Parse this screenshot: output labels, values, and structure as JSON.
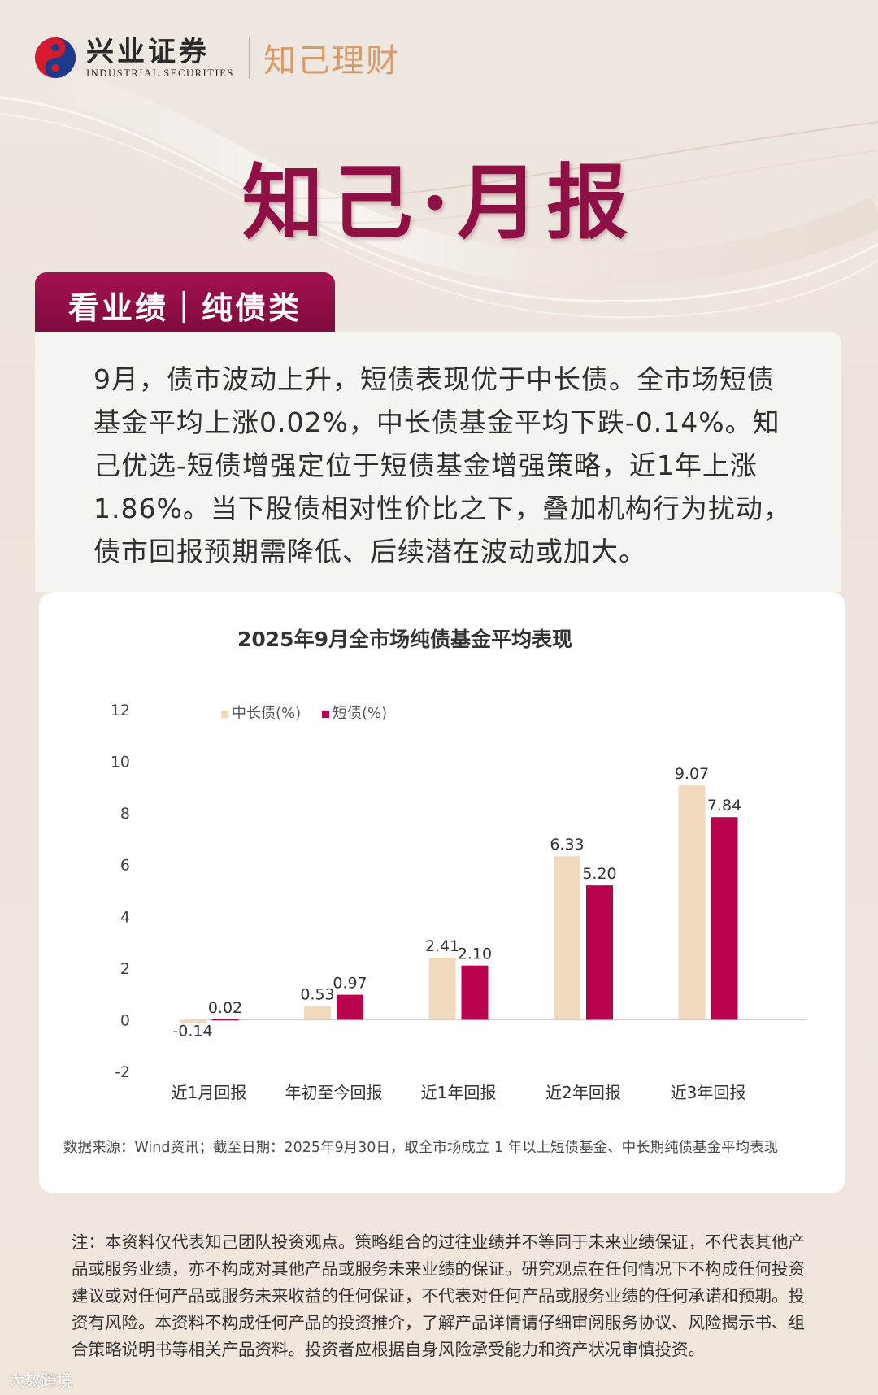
{
  "brand": {
    "name_cn": "兴业证券",
    "name_en": "INDUSTRIAL SECURITIES",
    "product": "知己理财"
  },
  "hero": {
    "title": "知己·月报"
  },
  "section": {
    "tab_label": "看业绩｜纯债类"
  },
  "summary": {
    "text": "9月，债市波动上升，短债表现优于中长债。全市场短债基金平均上涨0.02%，中长债基金平均下跌-0.14%。知己优选-短债增强定位于短债基金增强策略，近1年上涨1.86%。当下股债相对性价比之下，叠加机构行为扰动，债市回报预期需降低、后续潜在波动或加大。"
  },
  "chart_data": {
    "type": "bar",
    "title": "2025年9月全市场纯债基金平均表现",
    "categories": [
      "近1月回报",
      "年初至今回报",
      "近1年回报",
      "近2年回报",
      "近3年回报"
    ],
    "series": [
      {
        "name": "中长债(%)",
        "values": [
          -0.14,
          0.53,
          2.41,
          6.33,
          9.07
        ],
        "labels": [
          "-0.14",
          "0.53",
          "2.41",
          "6.33",
          "9.07"
        ],
        "color": "#f1d9bd"
      },
      {
        "name": "短债(%)",
        "values": [
          0.02,
          0.97,
          2.1,
          5.2,
          7.84
        ],
        "labels": [
          "0.02",
          "0.97",
          "2.10",
          "5.20",
          "7.84"
        ],
        "color": "#b8024c"
      }
    ],
    "yticks": [
      "-2",
      "0",
      "2",
      "4",
      "6",
      "8",
      "10",
      "12"
    ],
    "ylim": [
      -2,
      12
    ],
    "legend": "top-left",
    "grid": false
  },
  "source_note": "数据来源：Wind资讯；截至日期：2025年9月30日，取全市场成立 1 年以上短债基金、中长期纯债基金平均表现",
  "disclaimer": "注：本资料仅代表知己团队投资观点。策略组合的过往业绩并不等同于未来业绩保证，不代表其他产品或服务业绩，亦不构成对其他产品或服务未来业绩的保证。研究观点在任何情况下不构成任何投资建议或对任何产品或服务未来收益的任何保证，不代表对任何产品或服务业绩的任何承诺和预期。投资有风险。本资料不构成任何产品的投资推介，了解产品详情请仔细审阅服务协议、风险揭示书、组合策略说明书等相关产品资料。投资者应根据自身风险承受能力和资产状况审慎投资。",
  "watermark": "大数跨境"
}
